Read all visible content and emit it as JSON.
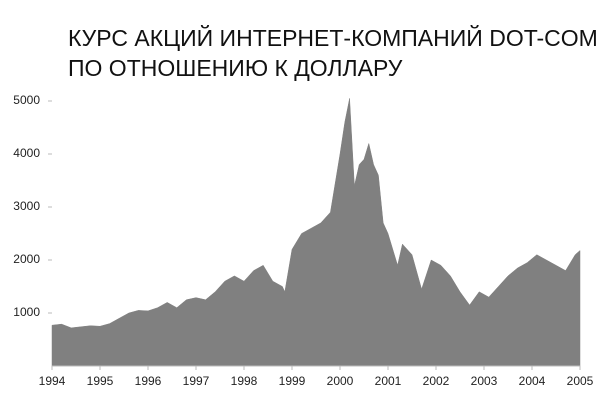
{
  "chart_data": {
    "type": "area",
    "title": [
      "КУРС АКЦИЙ ИНТЕРНЕТ-КОМПАНИЙ DOT-COM",
      "ПО ОТНОШЕНИЮ К ДОЛЛАРУ"
    ],
    "color": "#808080",
    "x": [
      1994.0,
      1994.2,
      1994.4,
      1994.6,
      1994.8,
      1995.0,
      1995.2,
      1995.4,
      1995.6,
      1995.8,
      1996.0,
      1996.2,
      1996.4,
      1996.6,
      1996.8,
      1997.0,
      1997.2,
      1997.4,
      1997.6,
      1997.8,
      1998.0,
      1998.2,
      1998.4,
      1998.6,
      1998.8,
      1998.85,
      1999.0,
      1999.2,
      1999.4,
      1999.6,
      1999.8,
      2000.0,
      2000.1,
      2000.2,
      2000.3,
      2000.4,
      2000.5,
      2000.6,
      2000.7,
      2000.8,
      2000.9,
      2001.0,
      2001.2,
      2001.3,
      2001.5,
      2001.7,
      2001.9,
      2002.1,
      2002.3,
      2002.5,
      2002.7,
      2002.9,
      2003.1,
      2003.3,
      2003.5,
      2003.7,
      2003.9,
      2004.1,
      2004.3,
      2004.5,
      2004.7,
      2004.9,
      2005.0
    ],
    "values": [
      770,
      790,
      720,
      740,
      760,
      750,
      800,
      900,
      1000,
      1050,
      1040,
      1100,
      1200,
      1100,
      1250,
      1290,
      1250,
      1400,
      1600,
      1700,
      1600,
      1800,
      1900,
      1600,
      1500,
      1400,
      2200,
      2500,
      2600,
      2700,
      2900,
      4000,
      4600,
      5050,
      3400,
      3800,
      3900,
      4200,
      3800,
      3600,
      2700,
      2500,
      1900,
      2300,
      2100,
      1450,
      2000,
      1900,
      1700,
      1400,
      1150,
      1400,
      1300,
      1500,
      1700,
      1850,
      1950,
      2100,
      2000,
      1900,
      1800,
      2100,
      2180
    ],
    "xlim": [
      1994,
      2005
    ],
    "xticks": [
      1994,
      1995,
      1996,
      1997,
      1998,
      1999,
      2000,
      2001,
      2002,
      2003,
      2004,
      2005
    ],
    "ylim": [
      0,
      5000
    ],
    "yticks": [
      1000,
      2000,
      3000,
      4000,
      5000
    ],
    "grid": false
  }
}
